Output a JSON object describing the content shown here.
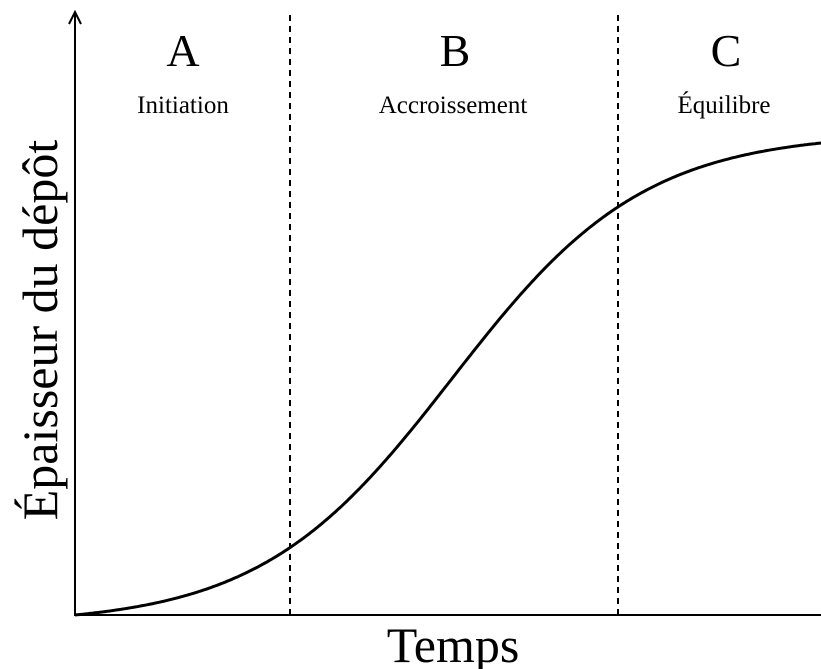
{
  "diagram": {
    "x_axis_label": "Temps",
    "y_axis_label": "Épaisseur du dépôt",
    "phases": [
      {
        "letter": "A",
        "name": "Initiation"
      },
      {
        "letter": "B",
        "name": "Accroissement"
      },
      {
        "letter": "C",
        "name": "Équilibre"
      }
    ]
  }
}
